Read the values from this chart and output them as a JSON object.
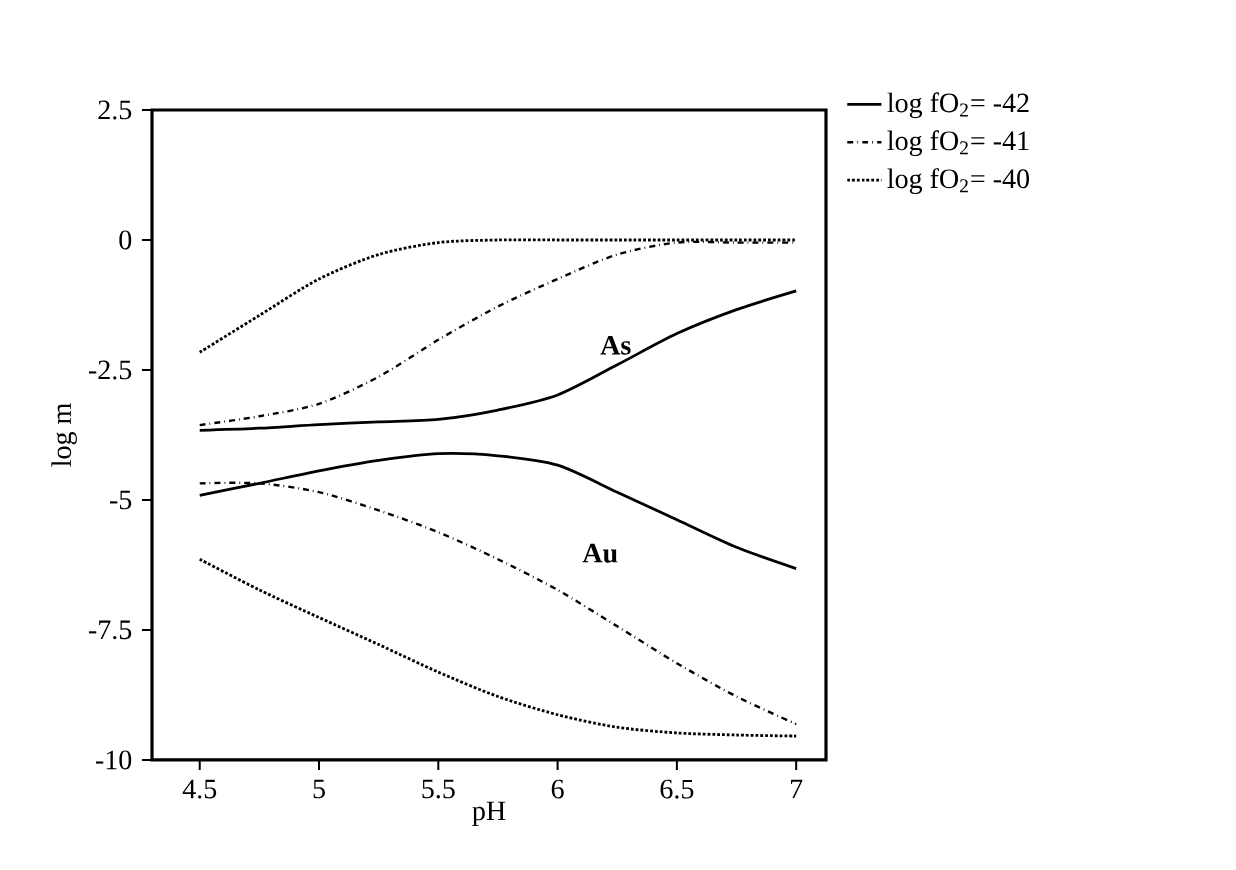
{
  "chart_data": {
    "type": "line",
    "xlabel": "pH",
    "ylabel": "log m",
    "x": [
      4.5,
      4.75,
      5,
      5.25,
      5.5,
      5.75,
      6,
      6.25,
      6.5,
      6.75,
      7
    ],
    "xlim": [
      4.3,
      7.125
    ],
    "xticks": [
      4.5,
      5,
      5.5,
      6,
      6.5,
      7
    ],
    "ylim": [
      -10,
      2.5
    ],
    "yticks": [
      -10,
      -7.5,
      -5,
      -2.5,
      0,
      2.5
    ],
    "grid": false,
    "legend": "top right",
    "marker": "none",
    "series": [
      {
        "name": "log fO$_{2}$= -42",
        "color": "#000000",
        "line_style": "solid",
        "values": [
          -3.66,
          -3.62,
          -3.55,
          -3.5,
          -3.45,
          -3.27,
          -2.98,
          -2.4,
          -1.8,
          -1.34,
          -0.98
        ]
      },
      {
        "name": "log fO$_{2}$= -41",
        "color": "#000000",
        "line_style": "dashdot",
        "values": [
          -3.56,
          -3.39,
          -3.15,
          -2.63,
          -1.92,
          -1.28,
          -0.75,
          -0.28,
          -0.05,
          -0.05,
          -0.05
        ]
      },
      {
        "name": "log fO$_{2}$= -40",
        "color": "#000000",
        "line_style": "dotted",
        "values": [
          -2.16,
          -1.45,
          -0.75,
          -0.28,
          -0.05,
          0,
          0,
          0,
          0,
          0,
          0
        ]
      },
      {
        "color": "#000000",
        "line_style": "solid",
        "values": [
          -4.91,
          -4.68,
          -4.44,
          -4.24,
          -4.11,
          -4.15,
          -4.33,
          -4.85,
          -5.38,
          -5.91,
          -6.32
        ]
      },
      {
        "color": "#000000",
        "line_style": "dashdot",
        "values": [
          -4.68,
          -4.68,
          -4.85,
          -5.2,
          -5.62,
          -6.14,
          -6.73,
          -7.43,
          -8.14,
          -8.78,
          -9.31
        ]
      },
      {
        "color": "#000000",
        "line_style": "dotted",
        "values": [
          -6.14,
          -6.73,
          -7.26,
          -7.78,
          -8.31,
          -8.78,
          -9.13,
          -9.37,
          -9.48,
          -9.52,
          -9.54
        ]
      }
    ],
    "annotations": [
      "As",
      "Au"
    ]
  }
}
